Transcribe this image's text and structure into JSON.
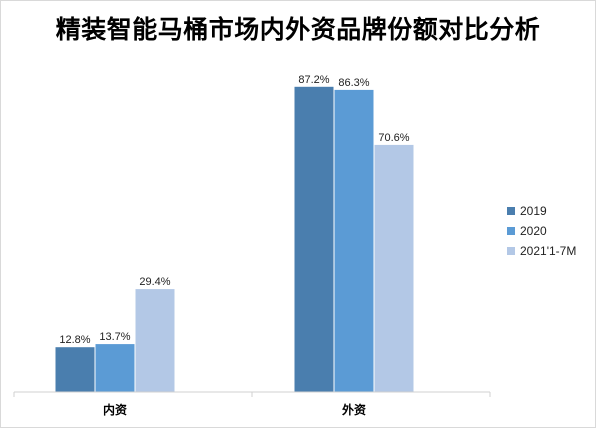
{
  "chart_data": {
    "type": "bar",
    "title": "精装智能马桶市场内外资品牌份额对比分析",
    "categories": [
      "内资",
      "外资"
    ],
    "series": [
      {
        "name": "2019",
        "values": [
          12.8,
          87.2
        ],
        "labels": [
          "12.8%",
          "87.2%"
        ],
        "color": "#4a7eae"
      },
      {
        "name": "2020",
        "values": [
          13.7,
          86.3
        ],
        "labels": [
          "13.7%",
          "86.3%"
        ],
        "color": "#5b9bd5"
      },
      {
        "name": "2021'1-7M",
        "values": [
          29.4,
          70.6
        ],
        "labels": [
          "29.4%",
          "70.6%"
        ],
        "color": "#b3c8e6"
      }
    ],
    "ylim": [
      0,
      100
    ],
    "legend": "right",
    "grid": false
  }
}
